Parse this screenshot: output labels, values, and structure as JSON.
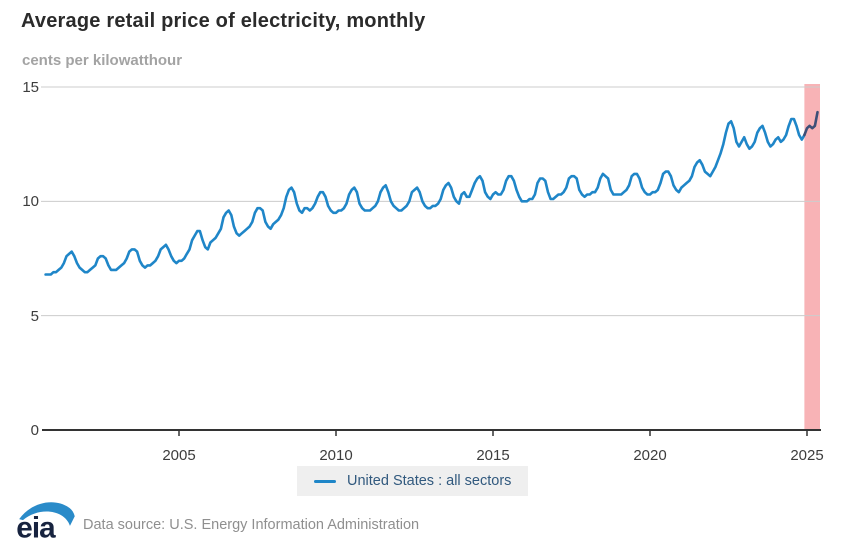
{
  "header": {
    "title": "Average retail price of electricity, monthly",
    "subtitle": "cents per kilowatthour"
  },
  "legend": {
    "label": "United States : all sectors",
    "swatch_color": "#1f86c8",
    "background": "#efefef",
    "text_color": "#31597e"
  },
  "footer": {
    "logo_text": "eia",
    "source_text": "Data source: U.S. Energy Information Administration"
  },
  "chart_data": {
    "type": "line",
    "title": "Average retail price of electricity, monthly",
    "xlabel": "",
    "ylabel": "cents per kilowatthour",
    "ylim": [
      0,
      15
    ],
    "yticks": [
      0,
      5,
      10,
      15
    ],
    "xticks": [
      2005,
      2010,
      2015,
      2020,
      2025
    ],
    "grid": "horizontal",
    "legend_position": "bottom",
    "colors": {
      "line": "#1f86c8",
      "forecast_line": "#3e4f77",
      "projection_band": "#f8b3b6",
      "grid": "#cccccc",
      "axis": "#333333"
    },
    "projection": {
      "start": "2024-12",
      "note": "shaded band at right edge of plot"
    },
    "series": [
      {
        "name": "United States : all sectors",
        "frequency": "monthly",
        "start": "2000-10",
        "end": "2025-05",
        "values": [
          6.8,
          6.8,
          6.8,
          6.9,
          6.9,
          7.0,
          7.1,
          7.3,
          7.6,
          7.7,
          7.8,
          7.6,
          7.3,
          7.1,
          7.0,
          6.9,
          6.9,
          7.0,
          7.1,
          7.2,
          7.5,
          7.6,
          7.6,
          7.5,
          7.2,
          7.0,
          7.0,
          7.0,
          7.1,
          7.2,
          7.3,
          7.5,
          7.8,
          7.9,
          7.9,
          7.8,
          7.4,
          7.2,
          7.1,
          7.2,
          7.2,
          7.3,
          7.4,
          7.6,
          7.9,
          8.0,
          8.1,
          7.9,
          7.6,
          7.4,
          7.3,
          7.4,
          7.4,
          7.5,
          7.7,
          7.9,
          8.3,
          8.5,
          8.7,
          8.7,
          8.3,
          8.0,
          7.9,
          8.2,
          8.3,
          8.4,
          8.6,
          8.8,
          9.3,
          9.5,
          9.6,
          9.4,
          8.9,
          8.6,
          8.5,
          8.6,
          8.7,
          8.8,
          8.9,
          9.1,
          9.5,
          9.7,
          9.7,
          9.6,
          9.1,
          8.9,
          8.8,
          9.0,
          9.1,
          9.2,
          9.4,
          9.7,
          10.2,
          10.5,
          10.6,
          10.4,
          9.9,
          9.6,
          9.5,
          9.7,
          9.7,
          9.6,
          9.7,
          9.9,
          10.2,
          10.4,
          10.4,
          10.2,
          9.8,
          9.6,
          9.5,
          9.5,
          9.6,
          9.6,
          9.7,
          9.9,
          10.3,
          10.5,
          10.6,
          10.4,
          9.9,
          9.7,
          9.6,
          9.6,
          9.6,
          9.7,
          9.8,
          10.0,
          10.4,
          10.6,
          10.7,
          10.4,
          10.0,
          9.8,
          9.7,
          9.6,
          9.6,
          9.7,
          9.8,
          10.0,
          10.4,
          10.5,
          10.6,
          10.4,
          10.0,
          9.8,
          9.7,
          9.7,
          9.8,
          9.8,
          9.9,
          10.1,
          10.5,
          10.7,
          10.8,
          10.6,
          10.2,
          10.0,
          9.9,
          10.3,
          10.4,
          10.2,
          10.2,
          10.5,
          10.8,
          11.0,
          11.1,
          10.9,
          10.4,
          10.2,
          10.1,
          10.3,
          10.4,
          10.3,
          10.3,
          10.5,
          10.9,
          11.1,
          11.1,
          10.9,
          10.5,
          10.2,
          10.0,
          10.0,
          10.0,
          10.1,
          10.1,
          10.3,
          10.8,
          11.0,
          11.0,
          10.9,
          10.4,
          10.1,
          10.1,
          10.2,
          10.3,
          10.3,
          10.4,
          10.6,
          11.0,
          11.1,
          11.1,
          11.0,
          10.5,
          10.3,
          10.2,
          10.3,
          10.3,
          10.4,
          10.4,
          10.6,
          11.0,
          11.2,
          11.1,
          11.0,
          10.5,
          10.3,
          10.3,
          10.3,
          10.3,
          10.4,
          10.5,
          10.7,
          11.1,
          11.2,
          11.2,
          11.0,
          10.6,
          10.4,
          10.3,
          10.3,
          10.4,
          10.4,
          10.5,
          10.8,
          11.2,
          11.3,
          11.3,
          11.1,
          10.7,
          10.5,
          10.4,
          10.6,
          10.7,
          10.8,
          10.9,
          11.1,
          11.5,
          11.7,
          11.8,
          11.6,
          11.3,
          11.2,
          11.1,
          11.3,
          11.5,
          11.8,
          12.1,
          12.5,
          13.0,
          13.4,
          13.5,
          13.2,
          12.6,
          12.4,
          12.6,
          12.8,
          12.5,
          12.3,
          12.4,
          12.6,
          13.0,
          13.2,
          13.3,
          13.0,
          12.6,
          12.4,
          12.5,
          12.7,
          12.8,
          12.6,
          12.7,
          12.9,
          13.3,
          13.6,
          13.6,
          13.3,
          12.9,
          12.7,
          12.9,
          13.2,
          13.3,
          13.2,
          13.3,
          13.9
        ]
      }
    ]
  }
}
